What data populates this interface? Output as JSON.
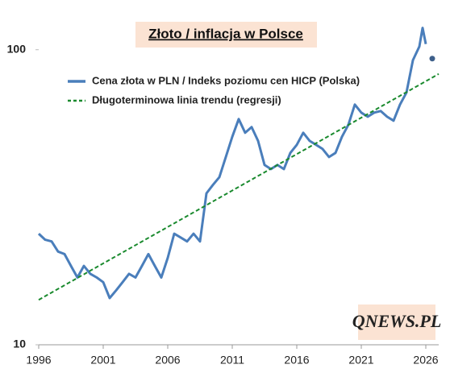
{
  "chart_data": {
    "type": "line",
    "title": "Złoto / inflacja w Polsce",
    "annotation": "QNEWS.PL",
    "log_y": true,
    "xlim": [
      1996,
      2027
    ],
    "xticks": [
      1996,
      2001,
      2006,
      2011,
      2016,
      2021,
      2026
    ],
    "ylim": [
      10,
      130
    ],
    "yticks": [
      10,
      100
    ],
    "series": [
      {
        "name": "Cena złota w PLN / Indeks poziomu cen HICP (Polska)",
        "color": "#4a7ebb",
        "style": "solid",
        "x": [
          1996,
          1996.5,
          1997,
          1997.5,
          1998,
          1998.5,
          1999,
          1999.5,
          2000,
          2000.5,
          2001,
          2001.5,
          2002,
          2002.5,
          2003,
          2003.5,
          2004,
          2004.5,
          2005,
          2005.5,
          2006,
          2006.5,
          2007,
          2007.5,
          2008,
          2008.5,
          2009,
          2009.5,
          2010,
          2010.5,
          2011,
          2011.5,
          2012,
          2012.5,
          2013,
          2013.5,
          2014,
          2014.5,
          2015,
          2015.5,
          2016,
          2016.5,
          2017,
          2017.5,
          2018,
          2018.5,
          2019,
          2019.5,
          2020,
          2020.5,
          2021,
          2021.5,
          2022,
          2022.5,
          2023,
          2023.5,
          2024,
          2024.5,
          2025,
          2025.5,
          2025.75,
          2026
        ],
        "values": [
          23.8,
          22.7,
          22.4,
          20.7,
          20.3,
          18.5,
          16.9,
          18.5,
          17.4,
          16.9,
          16.3,
          14.4,
          15.3,
          16.3,
          17.4,
          16.9,
          18.5,
          20.3,
          18.5,
          16.9,
          19.7,
          23.8,
          23.1,
          22.4,
          23.8,
          22.4,
          32.6,
          34.8,
          37.0,
          43.3,
          50.7,
          58.2,
          52.3,
          54.7,
          49.1,
          40.7,
          39.4,
          40.7,
          39.4,
          44.7,
          47.6,
          52.3,
          49.1,
          47.6,
          46.1,
          43.3,
          44.7,
          50.7,
          55.7,
          65.2,
          61.2,
          59.3,
          61.2,
          62.0,
          59.3,
          57.5,
          65.2,
          71.6,
          92.1,
          102.6,
          118.6,
          104.5
        ]
      },
      {
        "name": "Długoterminowa linia trendu (regresji)",
        "color": "#1a8a2e",
        "style": "dashed",
        "x": [
          1996,
          2027
        ],
        "values": [
          14.2,
          82.8
        ]
      },
      {
        "color": "#3e5f8a",
        "style": "point",
        "x": [
          2026.5
        ],
        "values": [
          93.3
        ]
      }
    ]
  }
}
